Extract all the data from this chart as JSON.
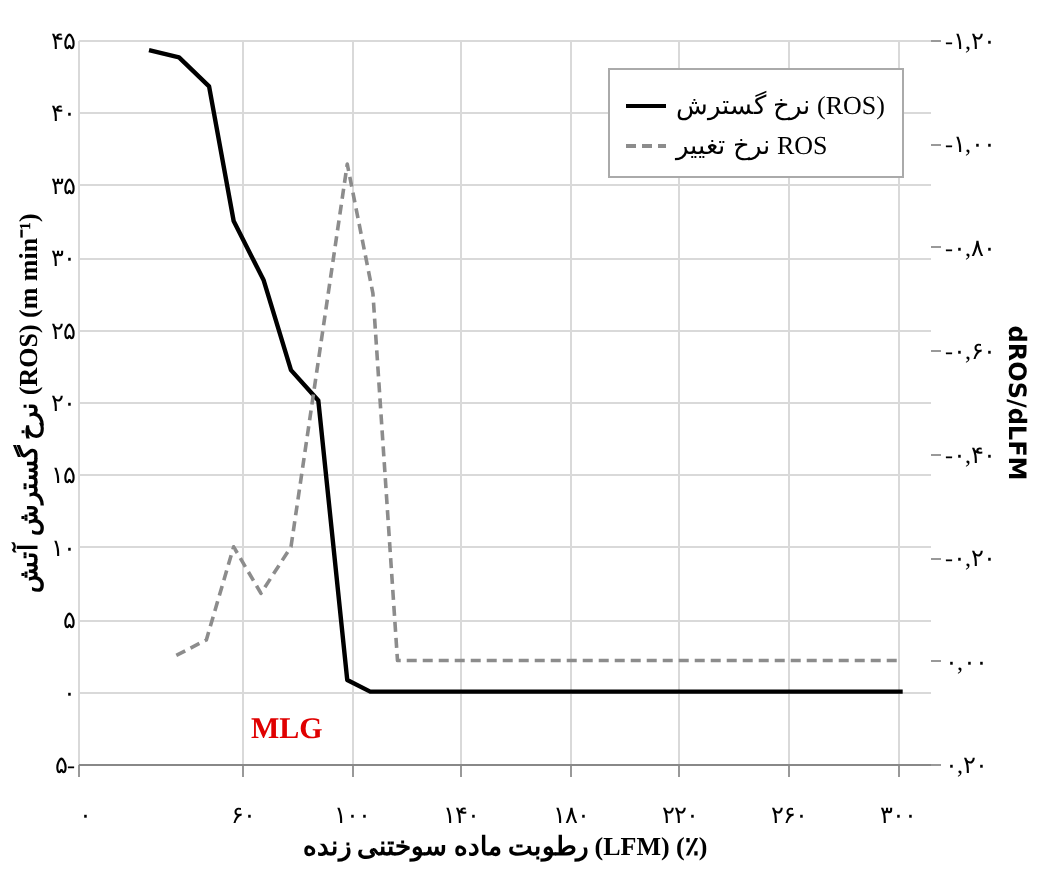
{
  "chart_data": {
    "type": "line",
    "xlabel": "رطوبت ماده سوختنی زنده (LFM) (٪)",
    "ylabel": "نرخ گسترش آتش (ROS) (m min⁻¹)",
    "y2label": "dROS/dLFM",
    "series": [
      {
        "name": "نرخ گسترش (ROS)",
        "color": "#000000",
        "line_style": "solid",
        "x": [
          26,
          37,
          48,
          57,
          68,
          78,
          88,
          98.6,
          107,
          302
        ],
        "values": [
          44.3,
          43.8,
          41.8,
          32.5,
          28.4,
          22.2,
          20.1,
          0.8,
          0,
          0
        ]
      },
      {
        "name": "نرخ تغییر ROS",
        "color": "#8c8c8c",
        "line_style": "dashed",
        "axis": "y2",
        "x": [
          36,
          47,
          57,
          67,
          78,
          98.6,
          108,
          117,
          300
        ],
        "values": [
          -0.01,
          -0.04,
          -0.22,
          -0.13,
          -0.22,
          -0.96,
          -0.71,
          0,
          0
        ]
      }
    ],
    "xlim": [
      0,
      312
    ],
    "xticks": [
      {
        "value": 0,
        "label": "۰"
      },
      {
        "value": 60,
        "label": "۶۰"
      },
      {
        "value": 100,
        "label": "۱۰۰"
      },
      {
        "value": 140,
        "label": "۱۴۰"
      },
      {
        "value": 180,
        "label": "۱۸۰"
      },
      {
        "value": 220,
        "label": "۲۲۰"
      },
      {
        "value": 260,
        "label": "۲۶۰"
      },
      {
        "value": 300,
        "label": "۳۰۰"
      }
    ],
    "ylim": [
      -5,
      45
    ],
    "yticks": [
      {
        "value": -5,
        "label": "۵-"
      },
      {
        "value": 0,
        "label": "۰"
      },
      {
        "value": 5,
        "label": "۵"
      },
      {
        "value": 10,
        "label": "۱۰"
      },
      {
        "value": 15,
        "label": "۱۵"
      },
      {
        "value": 20,
        "label": "۲۰"
      },
      {
        "value": 25,
        "label": "۲۵"
      },
      {
        "value": 30,
        "label": "۳۰"
      },
      {
        "value": 35,
        "label": "۳۵"
      },
      {
        "value": 40,
        "label": "۴۰"
      },
      {
        "value": 45,
        "label": "۴۵"
      }
    ],
    "y2lim": [
      0.2,
      -1.2
    ],
    "y2ticks": [
      {
        "value": 0.2,
        "label": "۰,۲۰"
      },
      {
        "value": 0,
        "label": "۰,۰۰"
      },
      {
        "value": -0.2,
        "label": "-۰,۲۰"
      },
      {
        "value": -0.4,
        "label": "-۰,۴۰"
      },
      {
        "value": -0.6,
        "label": "-۰,۶۰"
      },
      {
        "value": -0.8,
        "label": "-۰,۸۰"
      },
      {
        "value": -1.0,
        "label": "-۱,۰۰"
      },
      {
        "value": -1.2,
        "label": "-۱,۲۰"
      }
    ],
    "annotations": [
      "MLG"
    ],
    "grid": true,
    "legend": "top right"
  }
}
